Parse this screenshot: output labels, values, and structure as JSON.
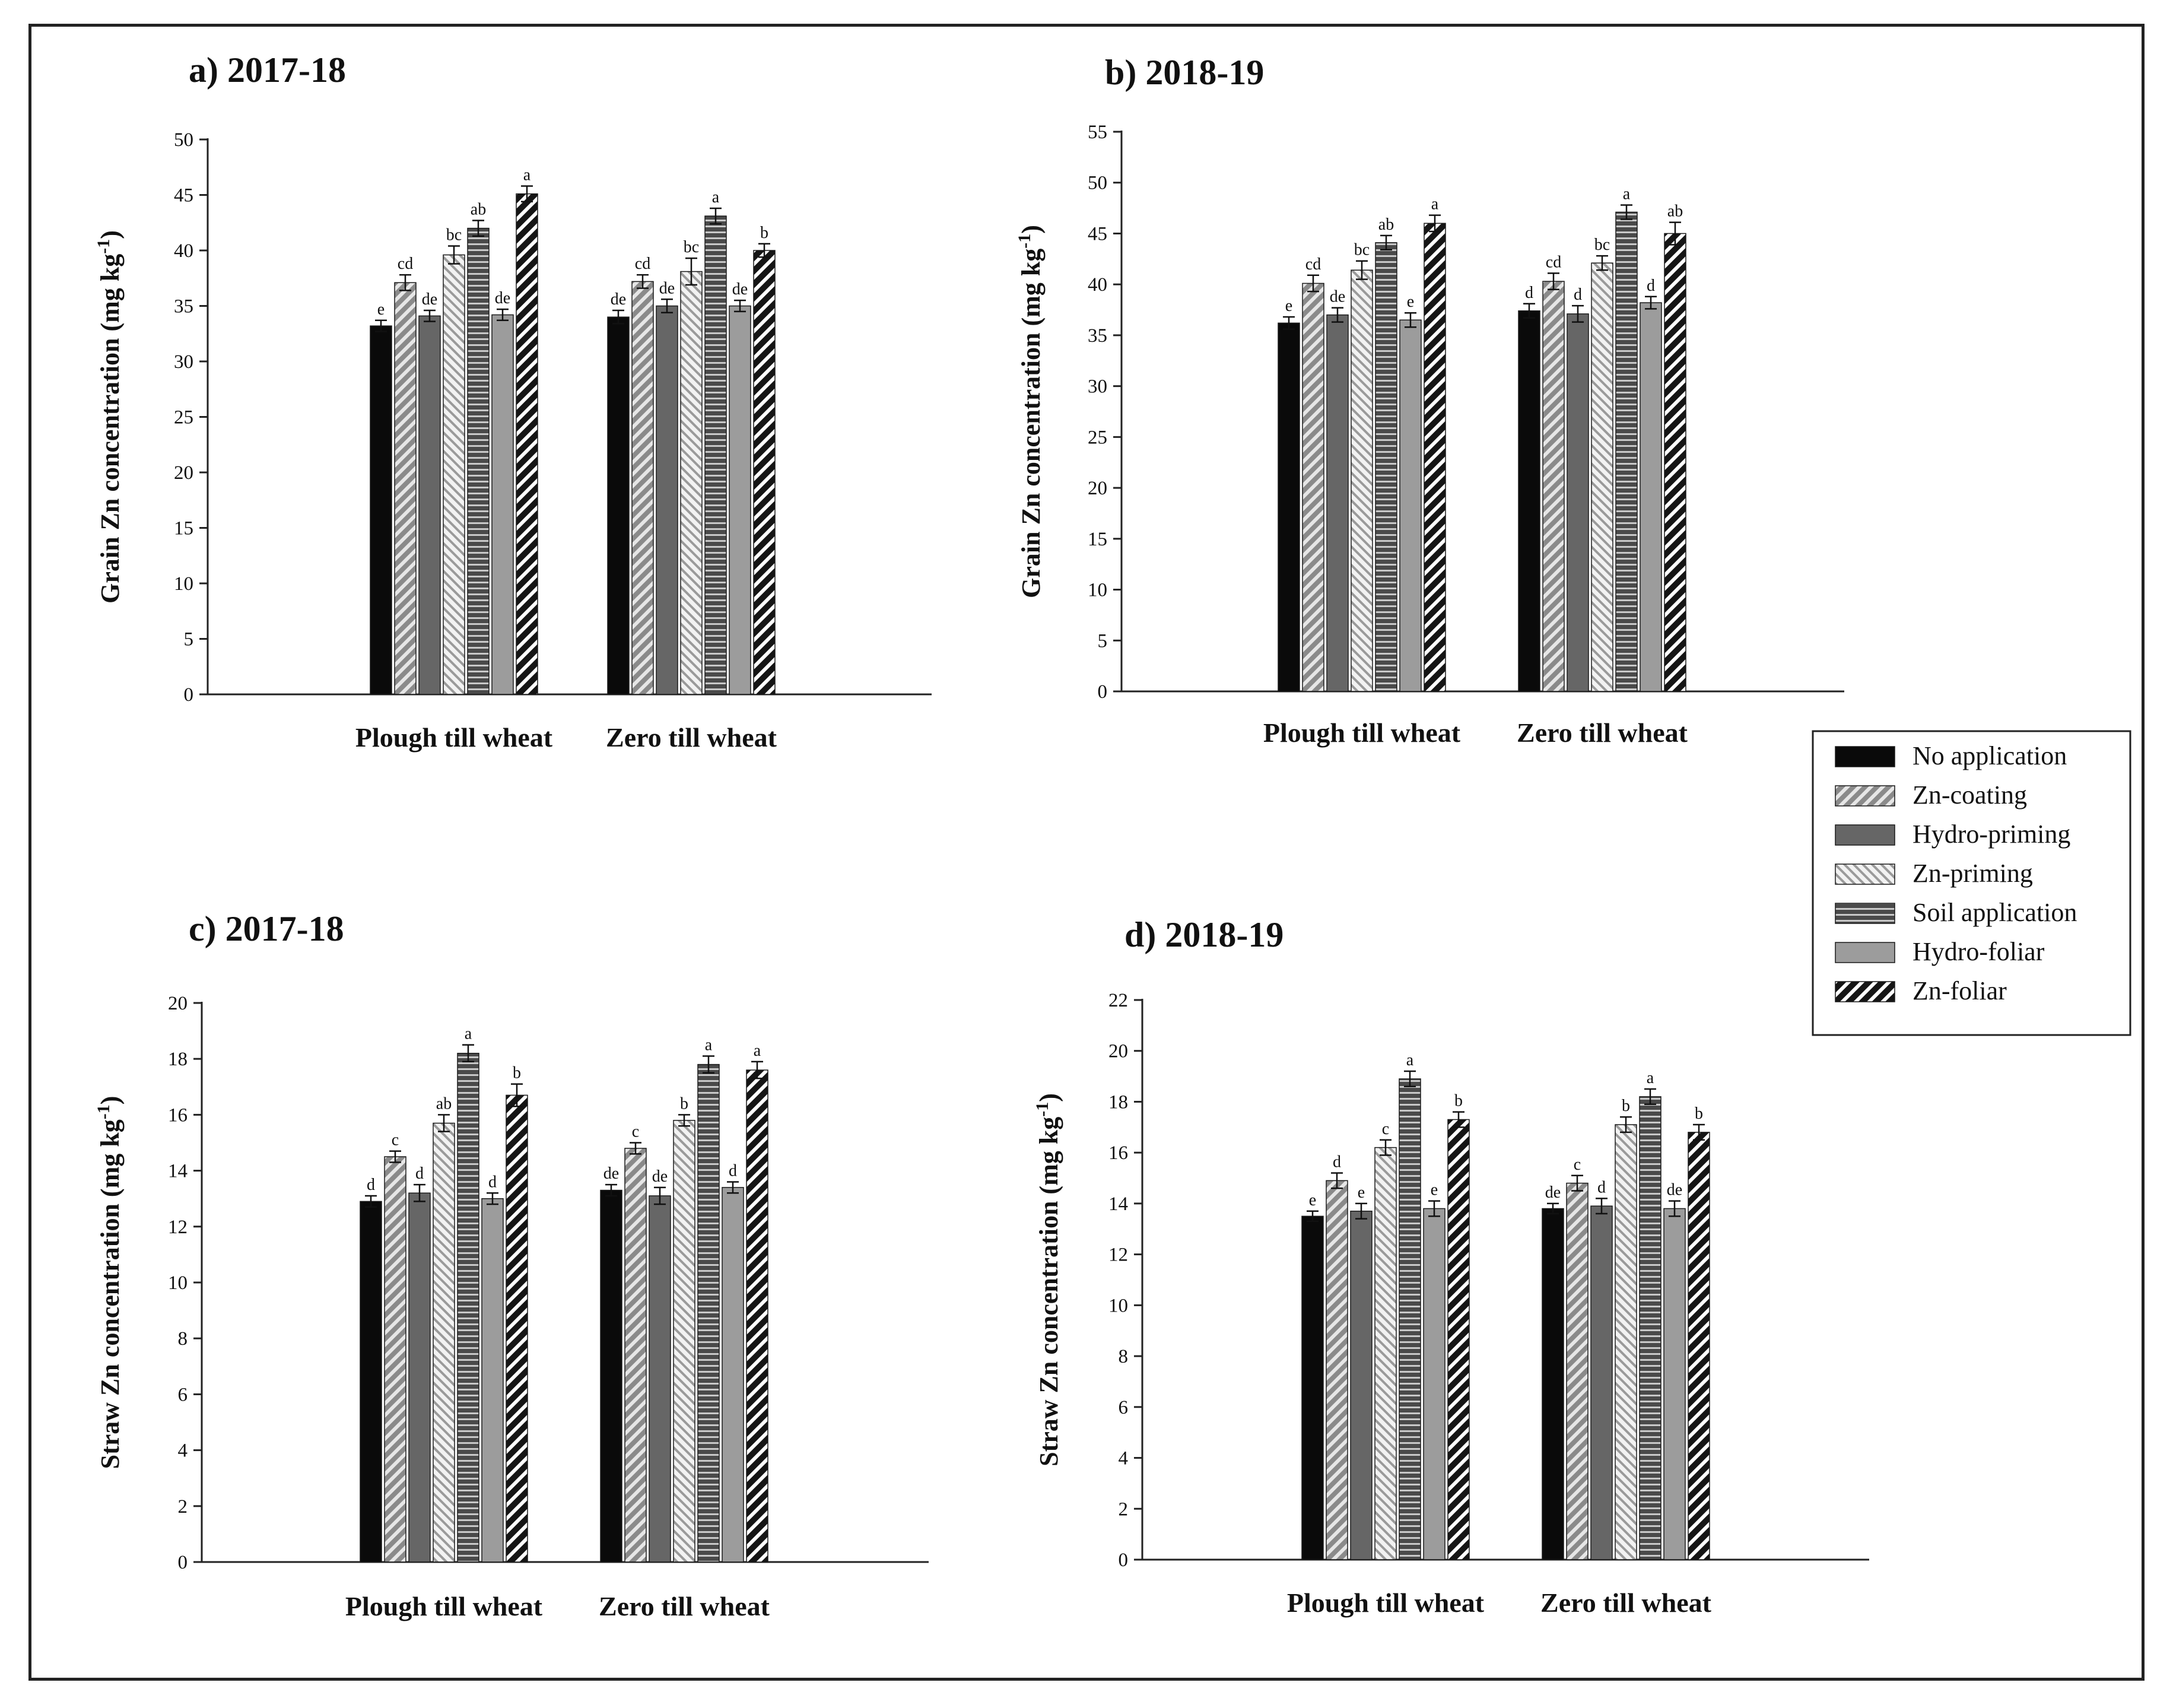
{
  "legend": {
    "items": [
      "No application",
      "Zn-coating",
      "Hydro-priming",
      "Zn-priming",
      "Soil application",
      "Hydro-foliar",
      "Zn-foliar"
    ]
  },
  "chart_data": [
    {
      "type": "bar",
      "panel": "a)",
      "title": "2017-18",
      "ylabel": "Grain Zn concentration (mg kg",
      "ylabel_sup": "-1",
      "ylabel_end": ")",
      "ylim": [
        0,
        50
      ],
      "yticks": [
        0,
        5,
        10,
        15,
        20,
        25,
        30,
        35,
        40,
        45,
        50
      ],
      "categories": [
        "Plough till wheat",
        "Zero till wheat"
      ],
      "series": [
        {
          "name": "No application",
          "values": [
            33.2,
            34.0
          ],
          "errors": [
            0.5,
            0.6
          ],
          "letters": [
            "e",
            "de"
          ]
        },
        {
          "name": "Zn-coating",
          "values": [
            37.1,
            37.2
          ],
          "errors": [
            0.7,
            0.6
          ],
          "letters": [
            "cd",
            "cd"
          ]
        },
        {
          "name": "Hydro-priming",
          "values": [
            34.1,
            35.0
          ],
          "errors": [
            0.5,
            0.6
          ],
          "letters": [
            "de",
            "de"
          ]
        },
        {
          "name": "Zn-priming",
          "values": [
            39.6,
            38.1
          ],
          "errors": [
            0.8,
            1.2
          ],
          "letters": [
            "bc",
            "bc"
          ]
        },
        {
          "name": "Soil application",
          "values": [
            42.0,
            43.1
          ],
          "errors": [
            0.7,
            0.7
          ],
          "letters": [
            "ab",
            "a"
          ]
        },
        {
          "name": "Hydro-foliar",
          "values": [
            34.2,
            35.0
          ],
          "errors": [
            0.5,
            0.5
          ],
          "letters": [
            "de",
            "de"
          ]
        },
        {
          "name": "Zn-foliar",
          "values": [
            45.1,
            40.0
          ],
          "errors": [
            0.7,
            0.6
          ],
          "letters": [
            "a",
            "b"
          ]
        }
      ]
    },
    {
      "type": "bar",
      "panel": "b)",
      "title": "2018-19",
      "ylabel": "Grain Zn concentration (mg kg",
      "ylabel_sup": "-1",
      "ylabel_end": ")",
      "ylim": [
        0,
        55
      ],
      "yticks": [
        0,
        5,
        10,
        15,
        20,
        25,
        30,
        35,
        40,
        45,
        50,
        55
      ],
      "categories": [
        "Plough till wheat",
        "Zero till wheat"
      ],
      "series": [
        {
          "name": "No application",
          "values": [
            36.2,
            37.4
          ],
          "errors": [
            0.6,
            0.7
          ],
          "letters": [
            "e",
            "d"
          ]
        },
        {
          "name": "Zn-coating",
          "values": [
            40.1,
            40.3
          ],
          "errors": [
            0.8,
            0.8
          ],
          "letters": [
            "cd",
            "cd"
          ]
        },
        {
          "name": "Hydro-priming",
          "values": [
            37.0,
            37.1
          ],
          "errors": [
            0.7,
            0.8
          ],
          "letters": [
            "de",
            "d"
          ]
        },
        {
          "name": "Zn-priming",
          "values": [
            41.4,
            42.1
          ],
          "errors": [
            0.9,
            0.7
          ],
          "letters": [
            "bc",
            "bc"
          ]
        },
        {
          "name": "Soil application",
          "values": [
            44.1,
            47.1
          ],
          "errors": [
            0.7,
            0.7
          ],
          "letters": [
            "ab",
            "a"
          ]
        },
        {
          "name": "Hydro-foliar",
          "values": [
            36.5,
            38.2
          ],
          "errors": [
            0.7,
            0.6
          ],
          "letters": [
            "e",
            "d"
          ]
        },
        {
          "name": "Zn-foliar",
          "values": [
            46.0,
            45.0
          ],
          "errors": [
            0.8,
            1.1
          ],
          "letters": [
            "a",
            "ab"
          ]
        }
      ]
    },
    {
      "type": "bar",
      "panel": "c)",
      "title": "2017-18",
      "ylabel": "Straw Zn concentration (mg kg",
      "ylabel_sup": "-1",
      "ylabel_end": ")",
      "ylim": [
        0,
        20
      ],
      "yticks": [
        0,
        2,
        4,
        6,
        8,
        10,
        12,
        14,
        16,
        18,
        20
      ],
      "categories": [
        "Plough till wheat",
        "Zero till wheat"
      ],
      "series": [
        {
          "name": "No application",
          "values": [
            12.9,
            13.3
          ],
          "errors": [
            0.2,
            0.2
          ],
          "letters": [
            "d",
            "de"
          ]
        },
        {
          "name": "Zn-coating",
          "values": [
            14.5,
            14.8
          ],
          "errors": [
            0.2,
            0.2
          ],
          "letters": [
            "c",
            "c"
          ]
        },
        {
          "name": "Hydro-priming",
          "values": [
            13.2,
            13.1
          ],
          "errors": [
            0.3,
            0.3
          ],
          "letters": [
            "d",
            "de"
          ]
        },
        {
          "name": "Zn-priming",
          "values": [
            15.7,
            15.8
          ],
          "errors": [
            0.3,
            0.2
          ],
          "letters": [
            "ab",
            "b"
          ]
        },
        {
          "name": "Soil application",
          "values": [
            18.2,
            17.8
          ],
          "errors": [
            0.3,
            0.3
          ],
          "letters": [
            "a",
            "a"
          ]
        },
        {
          "name": "Hydro-foliar",
          "values": [
            13.0,
            13.4
          ],
          "errors": [
            0.2,
            0.2
          ],
          "letters": [
            "d",
            "d"
          ]
        },
        {
          "name": "Zn-foliar",
          "values": [
            16.7,
            17.6
          ],
          "errors": [
            0.4,
            0.3
          ],
          "letters": [
            "b",
            "a"
          ]
        }
      ]
    },
    {
      "type": "bar",
      "panel": "d)",
      "title": "2018-19",
      "ylabel": "Straw Zn concentration (mg kg",
      "ylabel_sup": "-1",
      "ylabel_end": ")",
      "ylim": [
        0,
        22
      ],
      "yticks": [
        0,
        2,
        4,
        6,
        8,
        10,
        12,
        14,
        16,
        18,
        20,
        22
      ],
      "categories": [
        "Plough till wheat",
        "Zero till wheat"
      ],
      "series": [
        {
          "name": "No application",
          "values": [
            13.5,
            13.8
          ],
          "errors": [
            0.2,
            0.2
          ],
          "letters": [
            "e",
            "de"
          ]
        },
        {
          "name": "Zn-coating",
          "values": [
            14.9,
            14.8
          ],
          "errors": [
            0.3,
            0.3
          ],
          "letters": [
            "d",
            "c"
          ]
        },
        {
          "name": "Hydro-priming",
          "values": [
            13.7,
            13.9
          ],
          "errors": [
            0.3,
            0.3
          ],
          "letters": [
            "e",
            "d"
          ]
        },
        {
          "name": "Zn-priming",
          "values": [
            16.2,
            17.1
          ],
          "errors": [
            0.3,
            0.3
          ],
          "letters": [
            "c",
            "b"
          ]
        },
        {
          "name": "Soil application",
          "values": [
            18.9,
            18.2
          ],
          "errors": [
            0.3,
            0.3
          ],
          "letters": [
            "a",
            "a"
          ]
        },
        {
          "name": "Hydro-foliar",
          "values": [
            13.8,
            13.8
          ],
          "errors": [
            0.3,
            0.3
          ],
          "letters": [
            "e",
            "de"
          ]
        },
        {
          "name": "Zn-foliar",
          "values": [
            17.3,
            16.8
          ],
          "errors": [
            0.3,
            0.3
          ],
          "letters": [
            "b",
            "b"
          ]
        }
      ]
    }
  ]
}
